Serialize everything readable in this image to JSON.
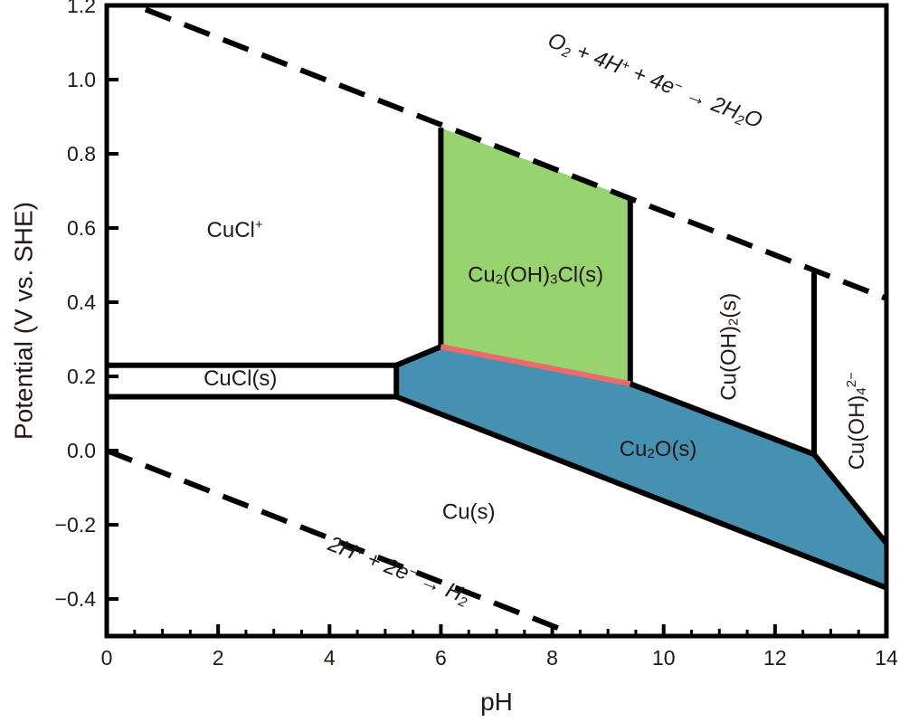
{
  "chart_data": {
    "type": "pourbaix",
    "xlabel": "pH",
    "ylabel": "Potential (V vs. SHE)",
    "xlim": [
      0,
      14
    ],
    "ylim": [
      -0.5,
      1.2
    ],
    "x_ticks": [
      0,
      2,
      4,
      6,
      8,
      10,
      12,
      14
    ],
    "x_tick_labels": [
      "0",
      "2",
      "4",
      "6",
      "8",
      "10",
      "12",
      "14"
    ],
    "y_ticks": [
      -0.4,
      -0.2,
      0.0,
      0.2,
      0.4,
      0.6,
      0.8,
      1.0,
      1.2
    ],
    "y_tick_labels": [
      "−0.4",
      "−0.2",
      "0.0",
      "0.2",
      "0.4",
      "0.6",
      "0.8",
      "1.0",
      "1.2"
    ],
    "grid": false,
    "regions": [
      {
        "label_parts": [
          [
            "CuCl",
            ""
          ],
          [
            "+",
            "sup"
          ]
        ],
        "fill": "none",
        "label_at": [
          2.3,
          0.59
        ]
      },
      {
        "label_parts": [
          [
            "Cu",
            ""
          ],
          [
            "2",
            "sub"
          ],
          [
            "(OH)",
            ""
          ],
          [
            "3",
            "sub"
          ],
          [
            "Cl(s)",
            ""
          ]
        ],
        "fill": "#97d36e",
        "polygon": [
          [
            6.0,
            0.87
          ],
          [
            9.4,
            0.68
          ],
          [
            9.4,
            0.18
          ],
          [
            6.0,
            0.28
          ]
        ],
        "label_at": [
          7.7,
          0.47
        ]
      },
      {
        "label_parts": [
          [
            "CuCl(s)",
            ""
          ]
        ],
        "fill": "none",
        "label_at": [
          2.4,
          0.19
        ]
      },
      {
        "label_parts": [
          [
            "Cu",
            ""
          ],
          [
            "2",
            "sub"
          ],
          [
            "O(s)",
            ""
          ]
        ],
        "fill": "#4690b2",
        "polygon": [
          [
            5.2,
            0.225
          ],
          [
            6.0,
            0.28
          ],
          [
            9.4,
            0.18
          ],
          [
            12.7,
            -0.01
          ],
          [
            14.0,
            -0.25
          ],
          [
            14.0,
            -0.37
          ],
          [
            5.2,
            0.145
          ]
        ],
        "label_at": [
          9.9,
          0.0
        ]
      },
      {
        "label_parts": [
          [
            "Cu(s)",
            ""
          ]
        ],
        "fill": "none",
        "label_at": [
          6.5,
          -0.17
        ]
      },
      {
        "label_parts": [
          [
            "Cu(OH)",
            ""
          ],
          [
            "2",
            "sub"
          ],
          [
            "(s)",
            ""
          ]
        ],
        "fill": "none",
        "label_at": [
          11.2,
          0.28
        ],
        "rotate": -90
      },
      {
        "label_parts": [
          [
            "Cu(OH)",
            ""
          ],
          [
            "4",
            "sub"
          ],
          [
            "2−",
            "sup"
          ]
        ],
        "fill": "none",
        "label_at": [
          13.5,
          0.08
        ],
        "rotate": -90
      }
    ],
    "boundaries": [
      {
        "points": [
          [
            0.0,
            0.23
          ],
          [
            5.2,
            0.23
          ]
        ],
        "color": "#000000"
      },
      {
        "points": [
          [
            0.0,
            0.145
          ],
          [
            5.2,
            0.145
          ]
        ],
        "color": "#000000"
      },
      {
        "points": [
          [
            5.2,
            0.145
          ],
          [
            5.2,
            0.23
          ]
        ],
        "color": "#000000"
      },
      {
        "points": [
          [
            5.2,
            0.23
          ],
          [
            6.0,
            0.28
          ]
        ],
        "color": "#000000"
      },
      {
        "points": [
          [
            6.0,
            0.87
          ],
          [
            6.0,
            0.28
          ]
        ],
        "color": "#000000"
      },
      {
        "points": [
          [
            9.4,
            0.68
          ],
          [
            9.4,
            0.18
          ]
        ],
        "color": "#000000"
      },
      {
        "points": [
          [
            6.0,
            0.28
          ],
          [
            9.4,
            0.18
          ]
        ],
        "color": "#ec6a6a"
      },
      {
        "points": [
          [
            9.4,
            0.18
          ],
          [
            12.7,
            -0.01
          ]
        ],
        "color": "#000000"
      },
      {
        "points": [
          [
            12.7,
            -0.01
          ],
          [
            14.0,
            -0.25
          ]
        ],
        "color": "#000000"
      },
      {
        "points": [
          [
            12.7,
            -0.01
          ],
          [
            12.7,
            0.48
          ]
        ],
        "color": "#000000"
      },
      {
        "points": [
          [
            5.2,
            0.145
          ],
          [
            14.0,
            -0.37
          ]
        ],
        "color": "#000000"
      }
    ],
    "reference_lines": [
      {
        "style": "dashed",
        "points": [
          [
            0.0,
            1.23
          ],
          [
            14.0,
            0.41
          ]
        ],
        "label_parts": [
          [
            "O",
            ""
          ],
          [
            "2",
            "sub"
          ],
          [
            " + 4H",
            ""
          ],
          [
            "+",
            "sup"
          ],
          [
            " + 4e",
            ""
          ],
          [
            "−",
            "sup"
          ],
          [
            " → 2H",
            ""
          ],
          [
            "2",
            "sub"
          ],
          [
            "O",
            ""
          ]
        ],
        "label_at": [
          9.8,
          0.98
        ]
      },
      {
        "style": "dashed",
        "points": [
          [
            0.0,
            0.0
          ],
          [
            8.3,
            -0.49
          ]
        ],
        "label_parts": [
          [
            "2H",
            ""
          ],
          [
            "+",
            "sup"
          ],
          [
            " + 2e",
            ""
          ],
          [
            "−",
            "sup"
          ],
          [
            " → H",
            ""
          ],
          [
            "2",
            "sub"
          ]
        ],
        "label_at": [
          5.2,
          -0.34
        ]
      }
    ]
  }
}
